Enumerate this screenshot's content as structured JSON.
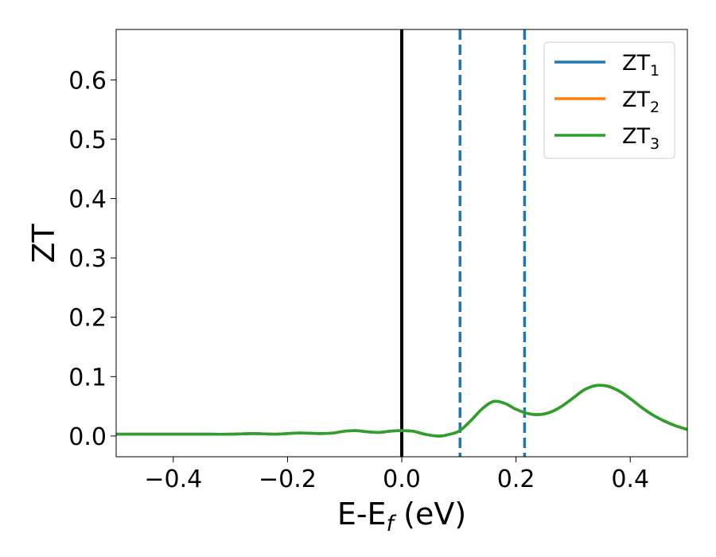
{
  "chart_data": {
    "type": "line",
    "xlabel": "E-E",
    "xlabel_subscript": "f",
    "xlabel_unit": " (eV)",
    "ylabel": "ZT",
    "xlim": [
      -0.5,
      0.5
    ],
    "ylim": [
      -0.035,
      0.685
    ],
    "x_ticks": [
      -0.4,
      -0.2,
      0.0,
      0.2,
      0.4
    ],
    "x_tick_labels": [
      "−0.4",
      "−0.2",
      "0.0",
      "0.2",
      "0.4"
    ],
    "y_ticks": [
      0.0,
      0.1,
      0.2,
      0.3,
      0.4,
      0.5,
      0.6
    ],
    "y_tick_labels": [
      "0.0",
      "0.1",
      "0.2",
      "0.3",
      "0.4",
      "0.5",
      "0.6"
    ],
    "grid": false,
    "legend_position": "top-right",
    "series": [
      {
        "name": "ZT",
        "name_subscript": "1",
        "color": "#1f77b4",
        "x": [
          -0.5,
          -0.45,
          -0.4,
          -0.35,
          -0.3,
          -0.26,
          -0.22,
          -0.18,
          -0.14,
          -0.12,
          -0.1,
          -0.08,
          -0.06,
          -0.04,
          -0.02,
          0.0,
          0.02,
          0.04,
          0.06,
          0.07,
          0.08,
          0.1,
          0.12,
          0.14,
          0.16,
          0.18,
          0.2,
          0.22,
          0.24,
          0.26,
          0.28,
          0.3,
          0.32,
          0.34,
          0.36,
          0.38,
          0.4,
          0.42,
          0.44,
          0.46,
          0.48,
          0.5
        ],
        "y": [
          0.003,
          0.003,
          0.003,
          0.003,
          0.003,
          0.004,
          0.003,
          0.005,
          0.004,
          0.005,
          0.008,
          0.009,
          0.007,
          0.006,
          0.008,
          0.009,
          0.008,
          0.003,
          0.0,
          0.0,
          0.002,
          0.008,
          0.025,
          0.045,
          0.058,
          0.055,
          0.045,
          0.038,
          0.036,
          0.04,
          0.05,
          0.064,
          0.078,
          0.085,
          0.084,
          0.076,
          0.063,
          0.048,
          0.035,
          0.025,
          0.017,
          0.011
        ]
      },
      {
        "name": "ZT",
        "name_subscript": "2",
        "color": "#ff7f0e",
        "x": [
          -0.5,
          -0.45,
          -0.4,
          -0.35,
          -0.3,
          -0.26,
          -0.22,
          -0.18,
          -0.14,
          -0.12,
          -0.1,
          -0.08,
          -0.06,
          -0.04,
          -0.02,
          0.0,
          0.02,
          0.04,
          0.06,
          0.07,
          0.08,
          0.1,
          0.12,
          0.14,
          0.16,
          0.18,
          0.2,
          0.22,
          0.24,
          0.26,
          0.28,
          0.3,
          0.32,
          0.34,
          0.36,
          0.38,
          0.4,
          0.42,
          0.44,
          0.46,
          0.48,
          0.5
        ],
        "y": [
          0.003,
          0.003,
          0.003,
          0.003,
          0.003,
          0.004,
          0.003,
          0.005,
          0.004,
          0.005,
          0.008,
          0.009,
          0.007,
          0.006,
          0.008,
          0.009,
          0.008,
          0.003,
          0.0,
          0.0,
          0.002,
          0.008,
          0.025,
          0.045,
          0.058,
          0.055,
          0.045,
          0.038,
          0.036,
          0.04,
          0.05,
          0.064,
          0.078,
          0.085,
          0.084,
          0.076,
          0.063,
          0.048,
          0.035,
          0.025,
          0.017,
          0.011
        ]
      },
      {
        "name": "ZT",
        "name_subscript": "3",
        "color": "#2ca02c",
        "x": [
          -0.5,
          -0.45,
          -0.4,
          -0.35,
          -0.3,
          -0.26,
          -0.22,
          -0.18,
          -0.14,
          -0.12,
          -0.1,
          -0.08,
          -0.06,
          -0.04,
          -0.02,
          0.0,
          0.02,
          0.04,
          0.06,
          0.07,
          0.08,
          0.1,
          0.12,
          0.14,
          0.16,
          0.18,
          0.2,
          0.22,
          0.24,
          0.26,
          0.28,
          0.3,
          0.32,
          0.34,
          0.36,
          0.38,
          0.4,
          0.42,
          0.44,
          0.46,
          0.48,
          0.5
        ],
        "y": [
          0.003,
          0.003,
          0.003,
          0.003,
          0.003,
          0.004,
          0.003,
          0.005,
          0.004,
          0.005,
          0.008,
          0.009,
          0.007,
          0.006,
          0.008,
          0.009,
          0.008,
          0.003,
          0.0,
          0.0,
          0.002,
          0.008,
          0.025,
          0.045,
          0.058,
          0.055,
          0.045,
          0.038,
          0.036,
          0.04,
          0.05,
          0.064,
          0.078,
          0.085,
          0.084,
          0.076,
          0.063,
          0.048,
          0.035,
          0.025,
          0.017,
          0.011
        ]
      }
    ],
    "vertical_lines": [
      {
        "x": 0.0,
        "style": "solid",
        "color": "#000000"
      },
      {
        "x": 0.102,
        "style": "dashed",
        "color": "#1f77b4"
      },
      {
        "x": 0.215,
        "style": "dashed",
        "color": "#1f77b4"
      }
    ]
  }
}
